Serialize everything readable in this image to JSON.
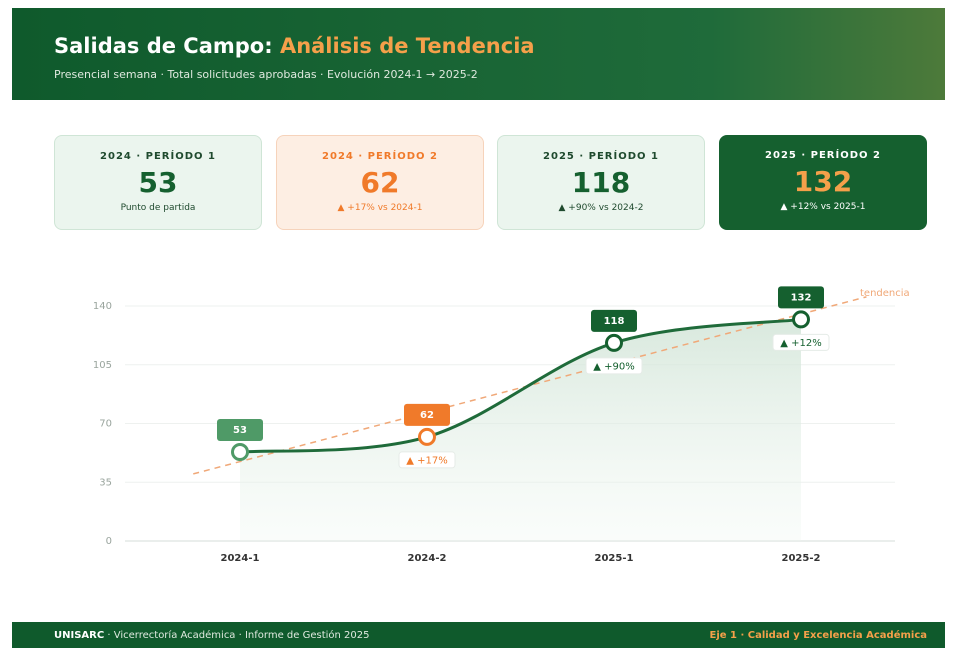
{
  "header": {
    "title_main": "Salidas de Campo:",
    "title_accent": "Análisis de Tendencia",
    "subtitle": "Presencial semana · Total solicitudes aprobadas · Evolución 2024-1 → 2025-2"
  },
  "cards": [
    {
      "label": "2024 · PERÍODO 1",
      "note": "Punto de partida"
    },
    {
      "label": "2024 · PERÍODO 2",
      "note": "▲ +17% vs 2024-1"
    },
    {
      "label": "2025 · PERÍODO 1",
      "note": "▲ +90% vs 2024-2"
    },
    {
      "label": "2025 · PERÍODO 2",
      "note": "▲ +12% vs 2025-1"
    }
  ],
  "chart_data": {
    "type": "line",
    "categories": [
      "2024-1",
      "2024-2",
      "2025-1",
      "2025-2"
    ],
    "values": [
      53,
      62,
      118,
      132
    ],
    "color": "#1f6b3a",
    "point_colors": [
      "#4f9a67",
      "#f07a2a",
      "#15602f",
      "#15602f"
    ],
    "change_labels": [
      null,
      "▲ +17%",
      "▲ +90%",
      "▲ +12%"
    ],
    "trend_label": "tendencia",
    "trend_color": "#f0a878",
    "ylim": [
      0,
      140
    ],
    "yticks": [
      0,
      35,
      70,
      105,
      140
    ],
    "grid": true
  },
  "footer": {
    "brand": "UNISARC",
    "text": " · Vicerrectoría Académica · Informe de Gestión 2025",
    "right": "Eje 1 · Calidad y Excelencia Académica"
  }
}
